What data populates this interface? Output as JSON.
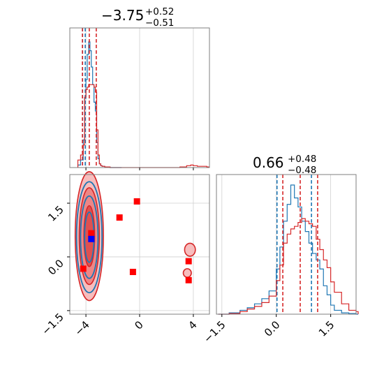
{
  "chart_data": [
    {
      "type": "histogram",
      "panel": "top-left",
      "title": {
        "value": "−3.75",
        "sup": "+0.52",
        "sub": "−0.51"
      },
      "xlim": [
        -5.2,
        5.2
      ],
      "grid": true,
      "colors": {
        "series_a": "#1f77b4",
        "series_b": "#d62728"
      },
      "series": [
        {
          "x": [
            -4.6,
            -4.4,
            -4.2,
            -4.1,
            -4.0,
            -3.9,
            -3.8,
            -3.7,
            -3.6,
            -3.5,
            -3.4,
            -3.3,
            -3.2,
            -3.1,
            -3.0,
            -2.9,
            -2.8,
            -2.6,
            -2.2,
            -1.5
          ],
          "density": [
            0.02,
            0.06,
            0.22,
            0.55,
            0.7,
            0.9,
            1.0,
            0.93,
            0.8,
            0.66,
            0.52,
            0.45,
            0.2,
            0.07,
            0.03,
            0.015,
            0.01,
            0.005,
            0.0,
            0.0
          ],
          "quantile_lines": [
            -4.25,
            -4.05
          ]
        },
        {
          "x": [
            -4.6,
            -4.4,
            -4.2,
            -4.1,
            -4.0,
            -3.9,
            -3.8,
            -3.7,
            -3.6,
            -3.5,
            -3.4,
            -3.3,
            -3.2,
            -3.1,
            -3.0,
            -2.9,
            -2.8,
            -2.6,
            -2.2,
            -1.5,
            3.0,
            3.5,
            3.8,
            4.0,
            4.3,
            4.6,
            5.0
          ],
          "density": [
            0.06,
            0.1,
            0.18,
            0.56,
            0.62,
            0.64,
            0.66,
            0.66,
            0.66,
            0.66,
            0.64,
            0.6,
            0.3,
            0.1,
            0.03,
            0.015,
            0.01,
            0.005,
            0.0,
            0.0,
            0.005,
            0.015,
            0.02,
            0.015,
            0.01,
            0.01,
            0.005
          ],
          "quantile_lines": [
            -4.26,
            -3.75,
            -3.23
          ]
        }
      ]
    },
    {
      "type": "histogram",
      "panel": "bottom-right",
      "title": {
        "value": "0.66",
        "sup": "+0.48",
        "sub": "−0.48"
      },
      "xlim": [
        -1.65,
        2.2
      ],
      "xticks": [
        "−1.5",
        "0.0",
        "1.5"
      ],
      "xtick_values": [
        -1.5,
        0.0,
        1.5
      ],
      "grid": true,
      "series": [
        {
          "x": [
            -1.6,
            -1.3,
            -1.0,
            -0.8,
            -0.6,
            -0.4,
            -0.2,
            0.0,
            0.1,
            0.2,
            0.3,
            0.4,
            0.5,
            0.6,
            0.7,
            0.8,
            0.9,
            1.0,
            1.1,
            1.2,
            1.3,
            1.4,
            1.5,
            1.6,
            1.8,
            2.0,
            2.2
          ],
          "density": [
            0.0,
            0.01,
            0.03,
            0.05,
            0.08,
            0.12,
            0.18,
            0.35,
            0.52,
            0.72,
            0.85,
            1.0,
            0.9,
            0.83,
            0.72,
            0.64,
            0.55,
            0.47,
            0.42,
            0.35,
            0.22,
            0.15,
            0.07,
            0.03,
            0.01,
            0.005,
            0.0
          ],
          "quantile_lines": [
            0.02,
            0.97
          ]
        },
        {
          "x": [
            -1.6,
            -1.3,
            -1.0,
            -0.8,
            -0.6,
            -0.4,
            -0.2,
            0.0,
            0.1,
            0.2,
            0.3,
            0.4,
            0.5,
            0.6,
            0.7,
            0.8,
            0.9,
            1.0,
            1.1,
            1.2,
            1.3,
            1.4,
            1.5,
            1.6,
            1.8,
            2.0,
            2.2
          ],
          "density": [
            0.0,
            0.005,
            0.02,
            0.04,
            0.06,
            0.09,
            0.14,
            0.26,
            0.38,
            0.55,
            0.62,
            0.66,
            0.68,
            0.71,
            0.74,
            0.72,
            0.7,
            0.68,
            0.58,
            0.5,
            0.42,
            0.36,
            0.25,
            0.17,
            0.08,
            0.03,
            0.02
          ],
          "quantile_lines": [
            0.18,
            0.66,
            1.14
          ]
        }
      ]
    },
    {
      "type": "contour",
      "panel": "bottom-left",
      "xlim": [
        -5.2,
        5.2
      ],
      "ylim": [
        -1.6,
        2.3
      ],
      "xticks": [
        "−4",
        "0",
        "4"
      ],
      "xtick_values": [
        -4,
        0,
        4
      ],
      "yticks": [
        "−1.5",
        "0.0",
        "1.5"
      ],
      "ytick_values": [
        -1.5,
        0.0,
        1.5
      ],
      "grid": true,
      "series": [
        {
          "contours": [
            {
              "cx": -3.75,
              "cy": 0.55,
              "rx": 0.95,
              "ry": 1.55
            },
            {
              "cx": -3.75,
              "cy": 0.55,
              "rx": 0.65,
              "ry": 1.15
            },
            {
              "cx": -3.75,
              "cy": 0.55,
              "rx": 0.35,
              "ry": 0.7
            }
          ],
          "markers": [
            {
              "x": -3.6,
              "y": 0.5
            }
          ]
        },
        {
          "contours": [
            {
              "cx": -3.75,
              "cy": 0.58,
              "rx": 1.05,
              "ry": 1.8
            },
            {
              "cx": -3.75,
              "cy": 0.58,
              "rx": 0.75,
              "ry": 1.35
            },
            {
              "cx": -3.75,
              "cy": 0.58,
              "rx": 0.4,
              "ry": 0.85
            },
            {
              "cx": 3.75,
              "cy": 0.2,
              "rx": 0.4,
              "ry": 0.18
            },
            {
              "cx": 3.55,
              "cy": -0.45,
              "rx": 0.3,
              "ry": 0.12
            }
          ],
          "markers": [
            {
              "x": -0.2,
              "y": 1.55
            },
            {
              "x": -1.5,
              "y": 1.1
            },
            {
              "x": -3.6,
              "y": 0.66
            },
            {
              "x": -4.2,
              "y": -0.33
            },
            {
              "x": -0.5,
              "y": -0.42
            },
            {
              "x": 3.65,
              "y": -0.12
            },
            {
              "x": 3.65,
              "y": -0.65
            }
          ]
        }
      ]
    }
  ]
}
